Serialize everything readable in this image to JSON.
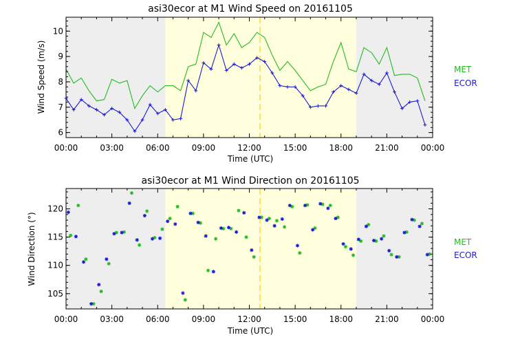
{
  "colors": {
    "night_shade": "#eeeeee",
    "day_shade": "#ffffdd",
    "noon_line": "#ffd21e",
    "met": "#22bb22",
    "ecor": "#1a1ad6",
    "axis": "#000000"
  },
  "chart_data": [
    {
      "type": "line",
      "title": "asi30ecor at M1 Wind Speed on 20161105",
      "xlabel": "Time (UTC)",
      "ylabel": "Wind Speed (m/s)",
      "xlim": [
        0,
        24
      ],
      "ylim": [
        5.8,
        10.55
      ],
      "xticks": [
        0,
        3,
        6,
        9,
        12,
        15,
        18,
        21,
        24
      ],
      "xtick_labels": [
        "00:00",
        "03:00",
        "06:00",
        "09:00",
        "12:00",
        "15:00",
        "18:00",
        "21:00",
        "00:00"
      ],
      "yticks": [
        6,
        7,
        8,
        9,
        10
      ],
      "ytick_labels": [
        "6",
        "7",
        "8",
        "9",
        "10"
      ],
      "day_span": [
        6.5,
        19.0
      ],
      "marker_hour": 12.7,
      "legend": [
        "MET",
        "ECOR"
      ],
      "series": [
        {
          "name": "MET",
          "style": "line",
          "x": [
            0,
            0.5,
            1,
            1.5,
            2,
            2.5,
            3,
            3.5,
            4,
            4.5,
            5,
            5.5,
            6,
            6.5,
            7,
            7.5,
            8,
            8.5,
            9,
            9.5,
            10,
            10.5,
            11,
            11.5,
            12,
            12.5,
            13,
            13.5,
            14,
            14.5,
            15,
            15.5,
            16,
            16.5,
            17,
            17.5,
            18,
            18.5,
            19,
            19.5,
            20,
            20.5,
            21,
            21.5,
            22,
            22.5,
            23,
            23.5
          ],
          "values": [
            8.5,
            7.95,
            8.15,
            7.65,
            7.25,
            7.3,
            8.1,
            7.95,
            8.05,
            6.95,
            7.45,
            7.85,
            7.6,
            7.85,
            7.85,
            7.65,
            8.6,
            8.7,
            9.95,
            9.75,
            10.35,
            9.45,
            9.9,
            9.35,
            9.55,
            9.95,
            9.75,
            9.05,
            8.45,
            8.8,
            8.45,
            8.05,
            7.65,
            7.8,
            7.9,
            8.8,
            9.55,
            8.5,
            8.4,
            9.35,
            9.15,
            8.7,
            9.35,
            8.25,
            8.3,
            8.3,
            8.15,
            7.25
          ]
        },
        {
          "name": "ECOR",
          "style": "line+plus",
          "x": [
            0,
            0.5,
            1,
            1.5,
            2,
            2.5,
            3,
            3.5,
            4,
            4.5,
            5,
            5.5,
            6,
            6.5,
            7,
            7.5,
            8,
            8.5,
            9,
            9.5,
            10,
            10.5,
            11,
            11.5,
            12,
            12.5,
            13,
            13.5,
            14,
            14.5,
            15,
            15.5,
            16,
            16.5,
            17,
            17.5,
            18,
            18.5,
            19,
            19.5,
            20,
            20.5,
            21,
            21.5,
            22,
            22.5,
            23,
            23.5
          ],
          "values": [
            7.35,
            6.9,
            7.3,
            7.05,
            6.9,
            6.7,
            6.95,
            6.8,
            6.5,
            6.05,
            6.5,
            7.1,
            6.75,
            6.9,
            6.5,
            6.55,
            8.05,
            7.65,
            8.75,
            8.5,
            9.45,
            8.45,
            8.7,
            8.55,
            8.7,
            8.95,
            8.8,
            8.35,
            7.85,
            7.8,
            7.8,
            7.45,
            7.0,
            7.05,
            7.05,
            7.6,
            7.85,
            7.7,
            7.55,
            8.3,
            8.05,
            7.9,
            8.35,
            7.6,
            6.95,
            7.2,
            7.25,
            6.3
          ]
        }
      ]
    },
    {
      "type": "scatter",
      "title": "asi30ecor at M1 Wind Direction on 20161105",
      "xlabel": "Time (UTC)",
      "ylabel": "Wind Direction (°)",
      "xlim": [
        0,
        24
      ],
      "ylim": [
        102.3,
        123.6
      ],
      "xticks": [
        0,
        3,
        6,
        9,
        12,
        15,
        18,
        21,
        24
      ],
      "xtick_labels": [
        "00:00",
        "03:00",
        "06:00",
        "09:00",
        "12:00",
        "15:00",
        "18:00",
        "21:00",
        "00:00"
      ],
      "yticks": [
        105,
        110,
        115,
        120
      ],
      "ytick_labels": [
        "105",
        "110",
        "115",
        "120"
      ],
      "day_span": [
        6.5,
        19.0
      ],
      "marker_hour": 12.7,
      "legend": [
        "MET",
        "ECOR"
      ],
      "series": [
        {
          "name": "MET",
          "style": "star",
          "x": [
            0.3,
            0.8,
            1.3,
            1.8,
            2.3,
            2.8,
            3.3,
            3.8,
            4.3,
            4.8,
            5.3,
            5.8,
            6.3,
            6.8,
            7.3,
            7.8,
            8.3,
            8.8,
            9.3,
            9.8,
            10.3,
            10.8,
            11.3,
            11.8,
            12.3,
            12.8,
            13.3,
            13.8,
            14.3,
            14.8,
            15.3,
            15.8,
            16.3,
            16.8,
            17.3,
            17.8,
            18.3,
            18.8,
            19.3,
            19.8,
            20.3,
            20.8,
            21.3,
            21.8,
            22.3,
            22.8,
            23.3,
            23.8
          ],
          "values": [
            115.3,
            120.6,
            111.1,
            103.2,
            105.4,
            110.3,
            115.8,
            115.9,
            122.8,
            113.6,
            119.6,
            114.9,
            116.4,
            118.3,
            120.4,
            103.9,
            119.2,
            117.5,
            109.1,
            114.7,
            116.5,
            116.5,
            119.7,
            115.0,
            111.5,
            118.5,
            118.3,
            117.9,
            116.8,
            120.4,
            112.2,
            120.7,
            116.6,
            120.8,
            120.6,
            118.5,
            113.3,
            111.8,
            114.3,
            117.2,
            114.3,
            115.2,
            111.9,
            111.5,
            115.9,
            118.0,
            117.4,
            112.0
          ]
        },
        {
          "name": "ECOR",
          "style": "star",
          "x": [
            0.15,
            0.65,
            1.15,
            1.65,
            2.15,
            2.65,
            3.15,
            3.65,
            4.15,
            4.65,
            5.15,
            5.65,
            6.15,
            6.65,
            7.15,
            7.65,
            8.15,
            8.65,
            9.15,
            9.65,
            10.15,
            10.65,
            11.15,
            11.65,
            12.15,
            12.65,
            13.15,
            13.65,
            14.15,
            14.65,
            15.15,
            15.65,
            16.15,
            16.65,
            17.15,
            17.65,
            18.15,
            18.65,
            19.15,
            19.65,
            20.15,
            20.65,
            21.15,
            21.65,
            22.15,
            22.65,
            23.15,
            23.65
          ],
          "values": [
            119.4,
            115.1,
            110.6,
            103.2,
            106.6,
            111.1,
            115.6,
            115.8,
            121.0,
            114.5,
            118.8,
            114.7,
            114.8,
            117.8,
            117.3,
            105.1,
            119.2,
            117.6,
            115.2,
            108.9,
            116.6,
            116.7,
            115.9,
            119.3,
            112.7,
            118.5,
            118.0,
            117.0,
            118.2,
            120.6,
            113.5,
            120.6,
            116.3,
            120.9,
            120.1,
            118.3,
            113.8,
            112.9,
            114.6,
            116.9,
            114.4,
            114.7,
            112.6,
            111.5,
            115.8,
            118.1,
            116.9,
            111.9
          ]
        }
      ]
    }
  ]
}
